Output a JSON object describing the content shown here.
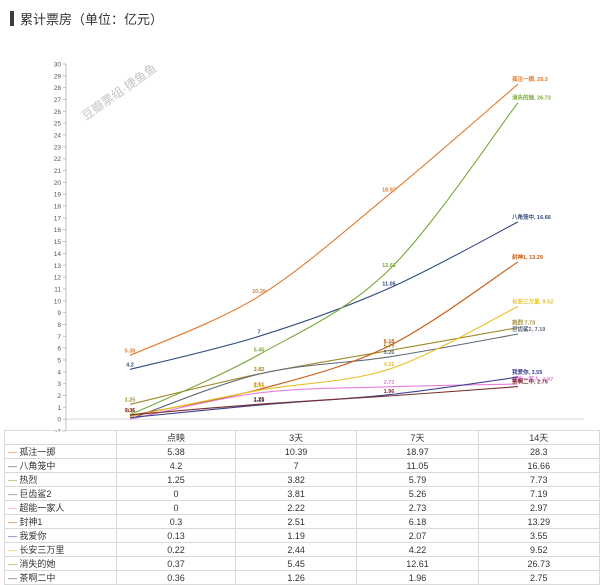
{
  "title": "累计票房（单位：亿元）",
  "watermark": "豆瓣票组·捷鱼鱼",
  "chart_data": {
    "type": "line",
    "categories": [
      "点映",
      "3天",
      "7天",
      "14天"
    ],
    "ylim": [
      -1,
      30
    ],
    "yticks": [
      -1,
      0,
      1,
      2,
      3,
      4,
      5,
      6,
      7,
      8,
      9,
      10,
      11,
      12,
      13,
      14,
      15,
      16,
      17,
      18,
      19,
      20,
      21,
      22,
      23,
      24,
      25,
      26,
      27,
      28,
      29,
      30
    ],
    "grid": false,
    "legend": "data-table",
    "series": [
      {
        "name": "孤注一掷",
        "color": "#e07b30",
        "values": [
          5.38,
          10.39,
          18.97,
          28.3
        ],
        "labels": [
          "5.38",
          "10.39",
          "18.97",
          "孤注一掷, 28.3"
        ]
      },
      {
        "name": "八角笼中",
        "color": "#2f4b7c",
        "values": [
          4.2,
          7,
          11.05,
          16.66
        ],
        "labels": [
          "4.2",
          "7",
          "11.05",
          "八角笼中, 16.66"
        ]
      },
      {
        "name": "热烈",
        "color": "#a08a2a",
        "values": [
          1.25,
          3.82,
          5.79,
          7.73
        ],
        "labels": [
          "1.25",
          "3.82",
          "5.79",
          "热烈 7.73"
        ]
      },
      {
        "name": "巨齿鲨2",
        "color": "#5f6b78",
        "values": [
          0,
          3.81,
          5.26,
          7.19
        ],
        "labels": [
          "",
          "",
          "5.26",
          "巨齿鲨2, 7.19"
        ]
      },
      {
        "name": "超能一家人",
        "color": "#e87fd8",
        "values": [
          0,
          2.22,
          2.73,
          2.97
        ],
        "labels": [
          "",
          "",
          "2.73",
          "超能一家人, 2.97"
        ]
      },
      {
        "name": "封神1",
        "color": "#c55a11",
        "values": [
          0.3,
          2.51,
          6.18,
          13.29
        ],
        "labels": [
          "0.3",
          "2.51",
          "6.18",
          "封神1, 13.29"
        ]
      },
      {
        "name": "我爱你",
        "color": "#3b3f8c",
        "values": [
          0.13,
          1.19,
          2.07,
          3.55
        ],
        "labels": [
          "",
          "1.19",
          "",
          "我爱你, 3.55"
        ]
      },
      {
        "name": "长安三万里",
        "color": "#e6c229",
        "values": [
          0.22,
          2.44,
          4.22,
          9.52
        ],
        "labels": [
          "",
          "2.44",
          "4.22",
          "长安三万里, 9.52"
        ]
      },
      {
        "name": "消失的她",
        "color": "#7aa83a",
        "values": [
          0.37,
          5.45,
          12.61,
          26.73
        ],
        "labels": [
          "",
          "5.45",
          "12.61",
          "消失的她, 26.73"
        ]
      },
      {
        "name": "茶啊二中",
        "color": "#7a2e2e",
        "values": [
          0.36,
          1.26,
          1.96,
          2.75
        ],
        "labels": [
          "0.36",
          "1.26",
          "1.96",
          "茶啊二中, 2.75"
        ]
      }
    ],
    "table": {
      "headers": [
        "",
        "点映",
        "3天",
        "7天",
        "14天"
      ],
      "rows": [
        {
          "name": "孤注一掷",
          "cells": [
            "5.38",
            "10.39",
            "18.97",
            "28.3"
          ]
        },
        {
          "name": "八角笼中",
          "cells": [
            "4.2",
            "7",
            "11.05",
            "16.66"
          ]
        },
        {
          "name": "热烈",
          "cells": [
            "1.25",
            "3.82",
            "5.79",
            "7.73"
          ]
        },
        {
          "name": "巨齿鲨2",
          "cells": [
            "0",
            "3.81",
            "5.26",
            "7.19"
          ]
        },
        {
          "name": "超能一家人",
          "cells": [
            "0",
            "2.22",
            "2.73",
            "2.97"
          ]
        },
        {
          "name": "封神1",
          "cells": [
            "0.3",
            "2.51",
            "6.18",
            "13.29"
          ]
        },
        {
          "name": "我爱你",
          "cells": [
            "0.13",
            "1.19",
            "2.07",
            "3.55"
          ]
        },
        {
          "name": "长安三万里",
          "cells": [
            "0.22",
            "2.44",
            "4.22",
            "9.52"
          ]
        },
        {
          "name": "消失的她",
          "cells": [
            "0.37",
            "5.45",
            "12.61",
            "26.73"
          ]
        },
        {
          "name": "茶啊二中",
          "cells": [
            "0.36",
            "1.26",
            "1.96",
            "2.75"
          ]
        }
      ]
    }
  }
}
